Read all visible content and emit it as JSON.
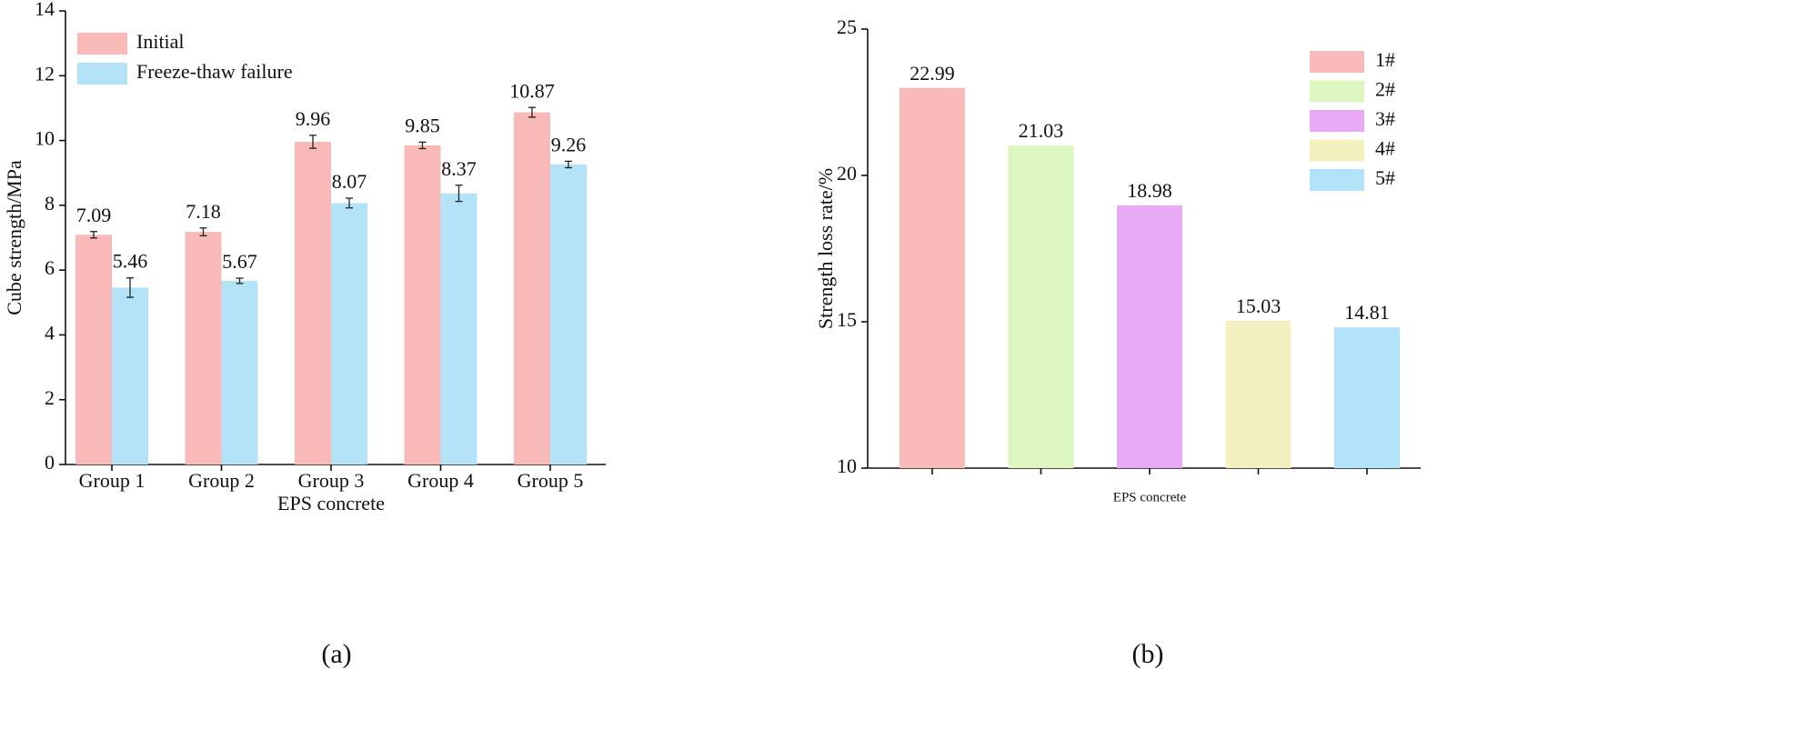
{
  "chart_data": [
    {
      "type": "bar",
      "label": "(a)",
      "x_label": "EPS concrete",
      "y_label": "Cube strength/MPa",
      "categories": [
        "Group 1",
        "Group 2",
        "Group 3",
        "Group 4",
        "Group 5"
      ],
      "series": [
        {
          "name": "Initial",
          "color": "#f9b9b9",
          "values": [
            7.09,
            7.18,
            9.96,
            9.85,
            10.87
          ],
          "errors": [
            0.1,
            0.12,
            0.2,
            0.1,
            0.15
          ]
        },
        {
          "name": "Freeze-thaw failure",
          "color": "#b4e3f8",
          "values": [
            5.46,
            5.67,
            8.07,
            8.37,
            9.26
          ],
          "errors": [
            0.3,
            0.08,
            0.15,
            0.25,
            0.1
          ]
        }
      ],
      "ylim": [
        0,
        14
      ],
      "yticks": [
        0,
        2,
        4,
        6,
        8,
        10,
        12,
        14
      ],
      "legend": "upper left"
    },
    {
      "type": "bar",
      "label": "(b)",
      "x_label": "EPS concrete",
      "y_label": "Strength loss rate/%",
      "categories": [
        null,
        null,
        null,
        null,
        null
      ],
      "values": [
        22.99,
        21.03,
        18.98,
        15.03,
        14.81
      ],
      "colors": [
        "#f9baba",
        "#ddf5c0",
        "#e8aaf5",
        "#f5f0c0",
        "#b3e3f8"
      ],
      "legend_labels": [
        "1#",
        "2#",
        "3#",
        "4#",
        "5#"
      ],
      "ylim": [
        10,
        25
      ],
      "yticks": [
        10,
        15,
        20,
        25
      ],
      "legend": "upper right"
    }
  ]
}
